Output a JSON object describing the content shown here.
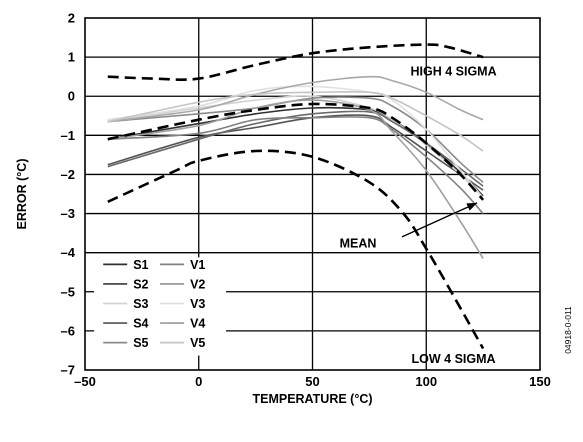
{
  "chart_data": {
    "type": "line",
    "xlabel": "TEMPERATURE (°C)",
    "ylabel": "ERROR (°C)",
    "xlim": [
      -50,
      150
    ],
    "ylim": [
      -7,
      2
    ],
    "x_ticks": [
      -50,
      0,
      50,
      100,
      150
    ],
    "y_ticks": [
      2,
      1,
      0,
      -1,
      -2,
      -3,
      -4,
      -5,
      -6,
      -7
    ],
    "x_tick_labels": [
      "–50",
      "0",
      "50",
      "100",
      "150"
    ],
    "y_tick_labels": [
      "2",
      "1",
      "0",
      "–1",
      "–2",
      "–3",
      "–4",
      "–5",
      "–6",
      "–7"
    ],
    "grid": true,
    "legend_position": "bottom-left",
    "figure_id": "04918-0-011",
    "series": [
      {
        "name": "S1",
        "color": "#303030",
        "dashed": false,
        "x": [
          -40,
          0,
          25,
          50,
          75,
          85,
          100,
          115,
          125
        ],
        "y": [
          -1.1,
          -0.7,
          -0.45,
          -0.3,
          -0.35,
          -0.6,
          -1.2,
          -1.95,
          -2.55
        ]
      },
      {
        "name": "S2",
        "color": "#555555",
        "dashed": false,
        "x": [
          -40,
          0,
          25,
          50,
          75,
          85,
          100,
          115,
          125
        ],
        "y": [
          -1.75,
          -1.05,
          -0.8,
          -0.55,
          -0.5,
          -0.8,
          -1.4,
          -2.0,
          -2.4
        ]
      },
      {
        "name": "S3",
        "color": "#d2d2d2",
        "dashed": false,
        "x": [
          -40,
          0,
          25,
          50,
          75,
          85,
          100,
          115,
          125
        ],
        "y": [
          -0.65,
          -0.3,
          -0.1,
          0.0,
          -0.3,
          -0.6,
          -1.25,
          -2.0,
          -2.6
        ]
      },
      {
        "name": "S4",
        "color": "#6a6a6a",
        "dashed": false,
        "x": [
          -40,
          0,
          25,
          50,
          75,
          85,
          100,
          115,
          125
        ],
        "y": [
          -1.8,
          -1.1,
          -0.7,
          -0.45,
          -0.4,
          -0.65,
          -1.2,
          -1.85,
          -2.3
        ]
      },
      {
        "name": "S5",
        "color": "#8a8a8a",
        "dashed": false,
        "x": [
          -40,
          0,
          25,
          50,
          75,
          85,
          100,
          115,
          125
        ],
        "y": [
          -0.65,
          -0.45,
          -0.3,
          -0.05,
          -0.05,
          -0.25,
          -0.85,
          -1.7,
          -2.2
        ]
      },
      {
        "name": "V1",
        "color": "#808080",
        "dashed": false,
        "x": [
          -40,
          0,
          25,
          50,
          75,
          85,
          100,
          115,
          125
        ],
        "y": [
          -1.1,
          -0.95,
          -0.6,
          -0.55,
          -0.55,
          -0.85,
          -1.55,
          -2.35,
          -3.0
        ]
      },
      {
        "name": "V2",
        "color": "#a0a0a0",
        "dashed": false,
        "x": [
          -40,
          0,
          25,
          50,
          75,
          85,
          100,
          115,
          125
        ],
        "y": [
          -1.1,
          -0.75,
          -0.3,
          -0.1,
          -0.35,
          -0.9,
          -1.9,
          -3.2,
          -4.15
        ]
      },
      {
        "name": "V3",
        "color": "#e0e0e0",
        "dashed": false,
        "x": [
          -40,
          0,
          25,
          50,
          75,
          85,
          100,
          115,
          125
        ],
        "y": [
          -0.6,
          -0.25,
          0.15,
          0.25,
          0.1,
          -0.1,
          -0.85,
          -1.9,
          -2.6
        ]
      },
      {
        "name": "V4",
        "color": "#a8a8a8",
        "dashed": false,
        "x": [
          -40,
          0,
          25,
          50,
          75,
          85,
          100,
          115,
          125
        ],
        "y": [
          -0.65,
          -0.35,
          0.05,
          0.35,
          0.5,
          0.4,
          0.1,
          -0.35,
          -0.6
        ]
      },
      {
        "name": "V5",
        "color": "#c4c4c4",
        "dashed": false,
        "x": [
          -40,
          0,
          25,
          50,
          75,
          85,
          100,
          115,
          125
        ],
        "y": [
          -0.65,
          -0.15,
          0.05,
          0.1,
          0.1,
          -0.05,
          -0.5,
          -1.0,
          -1.4
        ]
      },
      {
        "name": "HIGH 4 SIGMA",
        "color": "#000000",
        "dashed": true,
        "x": [
          -40,
          -20,
          0,
          25,
          50,
          75,
          100,
          110,
          125
        ],
        "y": [
          0.5,
          0.45,
          0.45,
          0.8,
          1.1,
          1.25,
          1.32,
          1.25,
          1.0
        ]
      },
      {
        "name": "MEAN",
        "color": "#000000",
        "dashed": true,
        "x": [
          -40,
          0,
          25,
          50,
          75,
          85,
          100,
          115,
          125
        ],
        "y": [
          -1.1,
          -0.6,
          -0.35,
          -0.2,
          -0.3,
          -0.55,
          -1.2,
          -2.0,
          -2.65
        ]
      },
      {
        "name": "LOW 4 SIGMA",
        "color": "#000000",
        "dashed": true,
        "x": [
          -40,
          -10,
          0,
          25,
          50,
          75,
          90,
          100,
          110,
          125
        ],
        "y": [
          -2.7,
          -1.9,
          -1.65,
          -1.4,
          -1.55,
          -2.2,
          -3.0,
          -3.9,
          -4.9,
          -6.45
        ]
      }
    ],
    "legend": [
      "S1",
      "S2",
      "S3",
      "S4",
      "S5",
      "V1",
      "V2",
      "V3",
      "V4",
      "V5"
    ],
    "annotations": [
      {
        "text": "HIGH 4 SIGMA",
        "x": 112,
        "y": 0.65
      },
      {
        "text": "MEAN",
        "x": 70,
        "y": -3.75,
        "arrow_to": [
          125,
          -2.65
        ]
      },
      {
        "text": "LOW 4 SIGMA",
        "x": 112,
        "y": -6.7
      }
    ]
  }
}
